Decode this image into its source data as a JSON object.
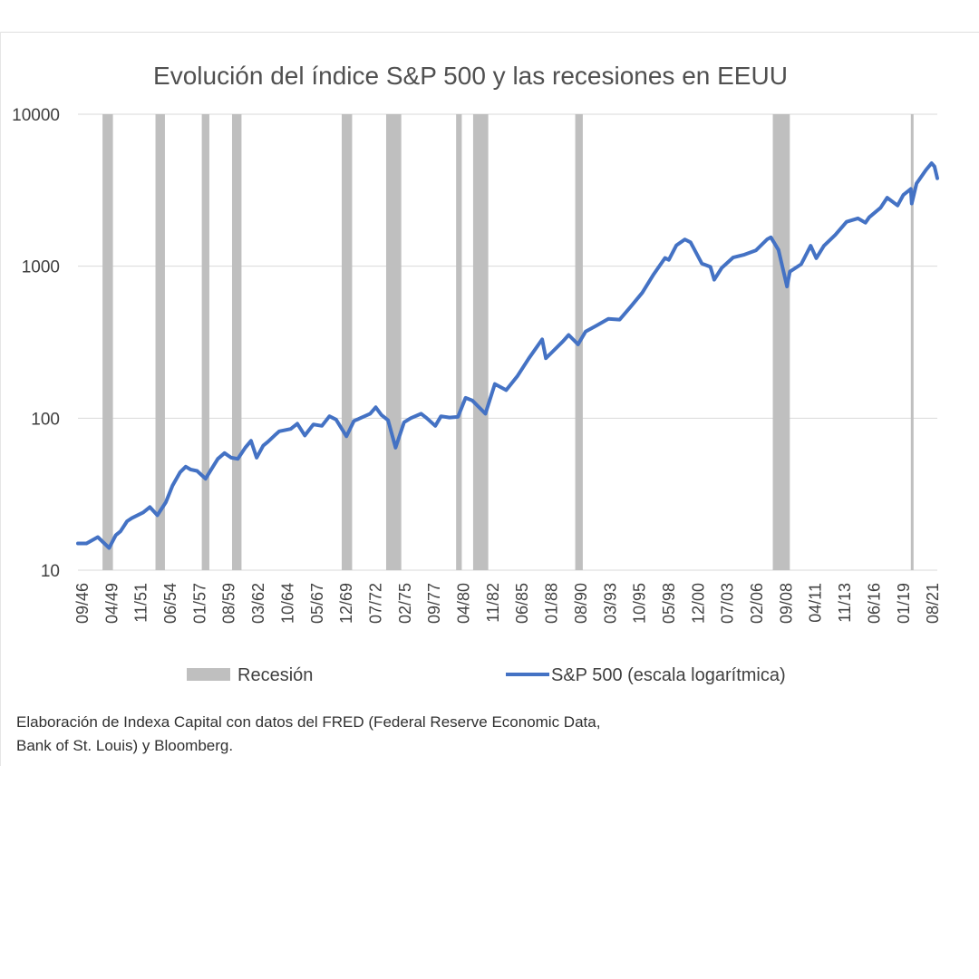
{
  "chart_data": {
    "type": "line",
    "title": "Evolución del índice S&P 500 y las recesiones en EEUU",
    "y_scale": "log",
    "ylim": [
      10,
      10000
    ],
    "y_ticks": [
      "10",
      "100",
      "1000",
      "10000"
    ],
    "x_range": [
      "1946-09",
      "2022-06"
    ],
    "x_tick_labels": [
      "09/46",
      "04/49",
      "11/51",
      "06/54",
      "01/57",
      "08/59",
      "03/62",
      "10/64",
      "05/67",
      "12/69",
      "07/72",
      "02/75",
      "09/77",
      "04/80",
      "11/82",
      "06/85",
      "01/88",
      "08/90",
      "03/93",
      "10/95",
      "05/98",
      "12/00",
      "07/03",
      "02/06",
      "09/08",
      "04/11",
      "11/13",
      "06/16",
      "01/19",
      "08/21"
    ],
    "grid": true,
    "legend_position": "bottom",
    "colors": {
      "line": "#4472C4",
      "recession": "#BFBFBF"
    },
    "series": [
      {
        "name": "S&P 500 (escala logarítmica)",
        "points": [
          [
            "1946-09",
            15
          ],
          [
            "1947-06",
            15
          ],
          [
            "1948-06",
            16.5
          ],
          [
            "1949-06",
            14
          ],
          [
            "1950-01",
            17
          ],
          [
            "1950-06",
            18
          ],
          [
            "1951-01",
            21
          ],
          [
            "1951-06",
            22
          ],
          [
            "1952-06",
            24
          ],
          [
            "1953-01",
            26
          ],
          [
            "1953-09",
            23
          ],
          [
            "1954-06",
            28
          ],
          [
            "1955-01",
            36
          ],
          [
            "1955-09",
            44
          ],
          [
            "1956-03",
            48
          ],
          [
            "1956-08",
            46
          ],
          [
            "1957-03",
            45
          ],
          [
            "1957-12",
            40
          ],
          [
            "1958-06",
            46
          ],
          [
            "1959-01",
            54
          ],
          [
            "1959-08",
            59
          ],
          [
            "1960-03",
            55
          ],
          [
            "1960-10",
            54
          ],
          [
            "1961-06",
            64
          ],
          [
            "1961-12",
            71
          ],
          [
            "1962-06",
            55
          ],
          [
            "1963-01",
            66
          ],
          [
            "1963-06",
            70
          ],
          [
            "1964-01",
            77
          ],
          [
            "1964-06",
            82
          ],
          [
            "1965-06",
            85
          ],
          [
            "1966-01",
            92
          ],
          [
            "1966-09",
            77
          ],
          [
            "1967-06",
            91
          ],
          [
            "1968-03",
            89
          ],
          [
            "1968-11",
            103
          ],
          [
            "1969-06",
            98
          ],
          [
            "1970-05",
            76
          ],
          [
            "1971-01",
            96
          ],
          [
            "1971-06",
            99
          ],
          [
            "1972-06",
            107
          ],
          [
            "1972-12",
            118
          ],
          [
            "1973-06",
            105
          ],
          [
            "1974-01",
            97
          ],
          [
            "1974-09",
            64
          ],
          [
            "1975-06",
            94
          ],
          [
            "1976-01",
            100
          ],
          [
            "1976-12",
            107
          ],
          [
            "1977-06",
            100
          ],
          [
            "1978-03",
            89
          ],
          [
            "1978-09",
            103
          ],
          [
            "1979-06",
            101
          ],
          [
            "1980-03",
            102
          ],
          [
            "1980-11",
            136
          ],
          [
            "1981-06",
            131
          ],
          [
            "1982-08",
            107
          ],
          [
            "1983-06",
            168
          ],
          [
            "1984-06",
            153
          ],
          [
            "1985-06",
            190
          ],
          [
            "1986-06",
            248
          ],
          [
            "1987-08",
            330
          ],
          [
            "1987-12",
            248
          ],
          [
            "1988-06",
            270
          ],
          [
            "1989-06",
            320
          ],
          [
            "1989-12",
            353
          ],
          [
            "1990-10",
            306
          ],
          [
            "1991-06",
            372
          ],
          [
            "1992-06",
            408
          ],
          [
            "1993-06",
            450
          ],
          [
            "1994-06",
            445
          ],
          [
            "1995-06",
            545
          ],
          [
            "1996-06",
            670
          ],
          [
            "1997-06",
            885
          ],
          [
            "1998-06",
            1133
          ],
          [
            "1998-10",
            1100
          ],
          [
            "1999-06",
            1372
          ],
          [
            "2000-03",
            1500
          ],
          [
            "2000-09",
            1436
          ],
          [
            "2001-09",
            1040
          ],
          [
            "2002-06",
            990
          ],
          [
            "2002-10",
            815
          ],
          [
            "2003-06",
            975
          ],
          [
            "2004-06",
            1140
          ],
          [
            "2005-06",
            1191
          ],
          [
            "2006-06",
            1270
          ],
          [
            "2007-06",
            1503
          ],
          [
            "2007-10",
            1549
          ],
          [
            "2008-06",
            1280
          ],
          [
            "2009-03",
            735
          ],
          [
            "2009-06",
            920
          ],
          [
            "2010-06",
            1030
          ],
          [
            "2011-04",
            1363
          ],
          [
            "2011-10",
            1130
          ],
          [
            "2012-06",
            1362
          ],
          [
            "2013-06",
            1606
          ],
          [
            "2014-06",
            1960
          ],
          [
            "2015-06",
            2063
          ],
          [
            "2016-02",
            1932
          ],
          [
            "2016-06",
            2099
          ],
          [
            "2017-06",
            2423
          ],
          [
            "2018-01",
            2823
          ],
          [
            "2018-12",
            2507
          ],
          [
            "2019-06",
            2942
          ],
          [
            "2020-02",
            3225
          ],
          [
            "2020-03",
            2584
          ],
          [
            "2020-08",
            3500
          ],
          [
            "2021-06",
            4297
          ],
          [
            "2021-12",
            4766
          ],
          [
            "2022-03",
            4530
          ],
          [
            "2022-06",
            3785
          ]
        ]
      }
    ],
    "recessions": [
      [
        "1948-11",
        "1949-10"
      ],
      [
        "1953-07",
        "1954-05"
      ],
      [
        "1957-08",
        "1958-04"
      ],
      [
        "1960-04",
        "1961-02"
      ],
      [
        "1969-12",
        "1970-11"
      ],
      [
        "1973-11",
        "1975-03"
      ],
      [
        "1980-01",
        "1980-07"
      ],
      [
        "1981-07",
        "1982-11"
      ],
      [
        "1990-07",
        "1991-03"
      ],
      [
        "2007-12",
        "2009-06"
      ],
      [
        "2020-02",
        "2020-04"
      ]
    ],
    "legend": {
      "recession_label": "Recesión",
      "line_label": "S&P 500 (escala logarítmica)"
    }
  },
  "footer": {
    "note_line1": "Elaboración de Indexa Capital con datos del FRED (Federal Reserve Economic Data,",
    "note_line2": "Bank of St. Louis) y Bloomberg."
  }
}
